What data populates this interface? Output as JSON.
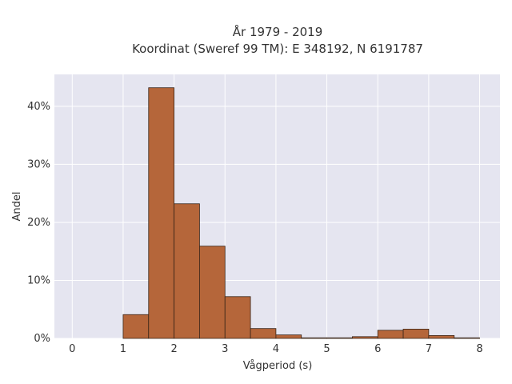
{
  "chart_data": {
    "type": "bar",
    "title_line1": "År 1979 - 2019",
    "title_line2": "Koordinat (Sweref 99 TM): E 348192, N 6191787",
    "xlabel": "Vågperiod (s)",
    "ylabel": "Andel",
    "xlim": [
      -0.35,
      8.4
    ],
    "ylim": [
      0,
      45.5
    ],
    "x_ticks": [
      0,
      1,
      2,
      3,
      4,
      5,
      6,
      7,
      8
    ],
    "x_tick_labels": [
      "0",
      "1",
      "2",
      "3",
      "4",
      "5",
      "6",
      "7",
      "8"
    ],
    "y_ticks": [
      0,
      10,
      20,
      30,
      40
    ],
    "y_tick_labels": [
      "0%",
      "10%",
      "20%",
      "30%",
      "40%"
    ],
    "grid": true,
    "bin_width": 0.5,
    "bins": [
      {
        "start": 1.0,
        "value": 4.1
      },
      {
        "start": 1.5,
        "value": 43.2
      },
      {
        "start": 2.0,
        "value": 23.2
      },
      {
        "start": 2.5,
        "value": 15.9
      },
      {
        "start": 3.0,
        "value": 7.2
      },
      {
        "start": 3.5,
        "value": 1.7
      },
      {
        "start": 4.0,
        "value": 0.6
      },
      {
        "start": 4.5,
        "value": 0.1
      },
      {
        "start": 5.0,
        "value": 0.1
      },
      {
        "start": 5.5,
        "value": 0.3
      },
      {
        "start": 6.0,
        "value": 1.4
      },
      {
        "start": 6.5,
        "value": 1.6
      },
      {
        "start": 7.0,
        "value": 0.5
      },
      {
        "start": 7.5,
        "value": 0.1
      }
    ],
    "colors": {
      "bar_fill": "#b5663a",
      "bar_stroke": "#3a2518",
      "plot_bg": "#e5e5f0",
      "grid": "#ffffff"
    }
  }
}
